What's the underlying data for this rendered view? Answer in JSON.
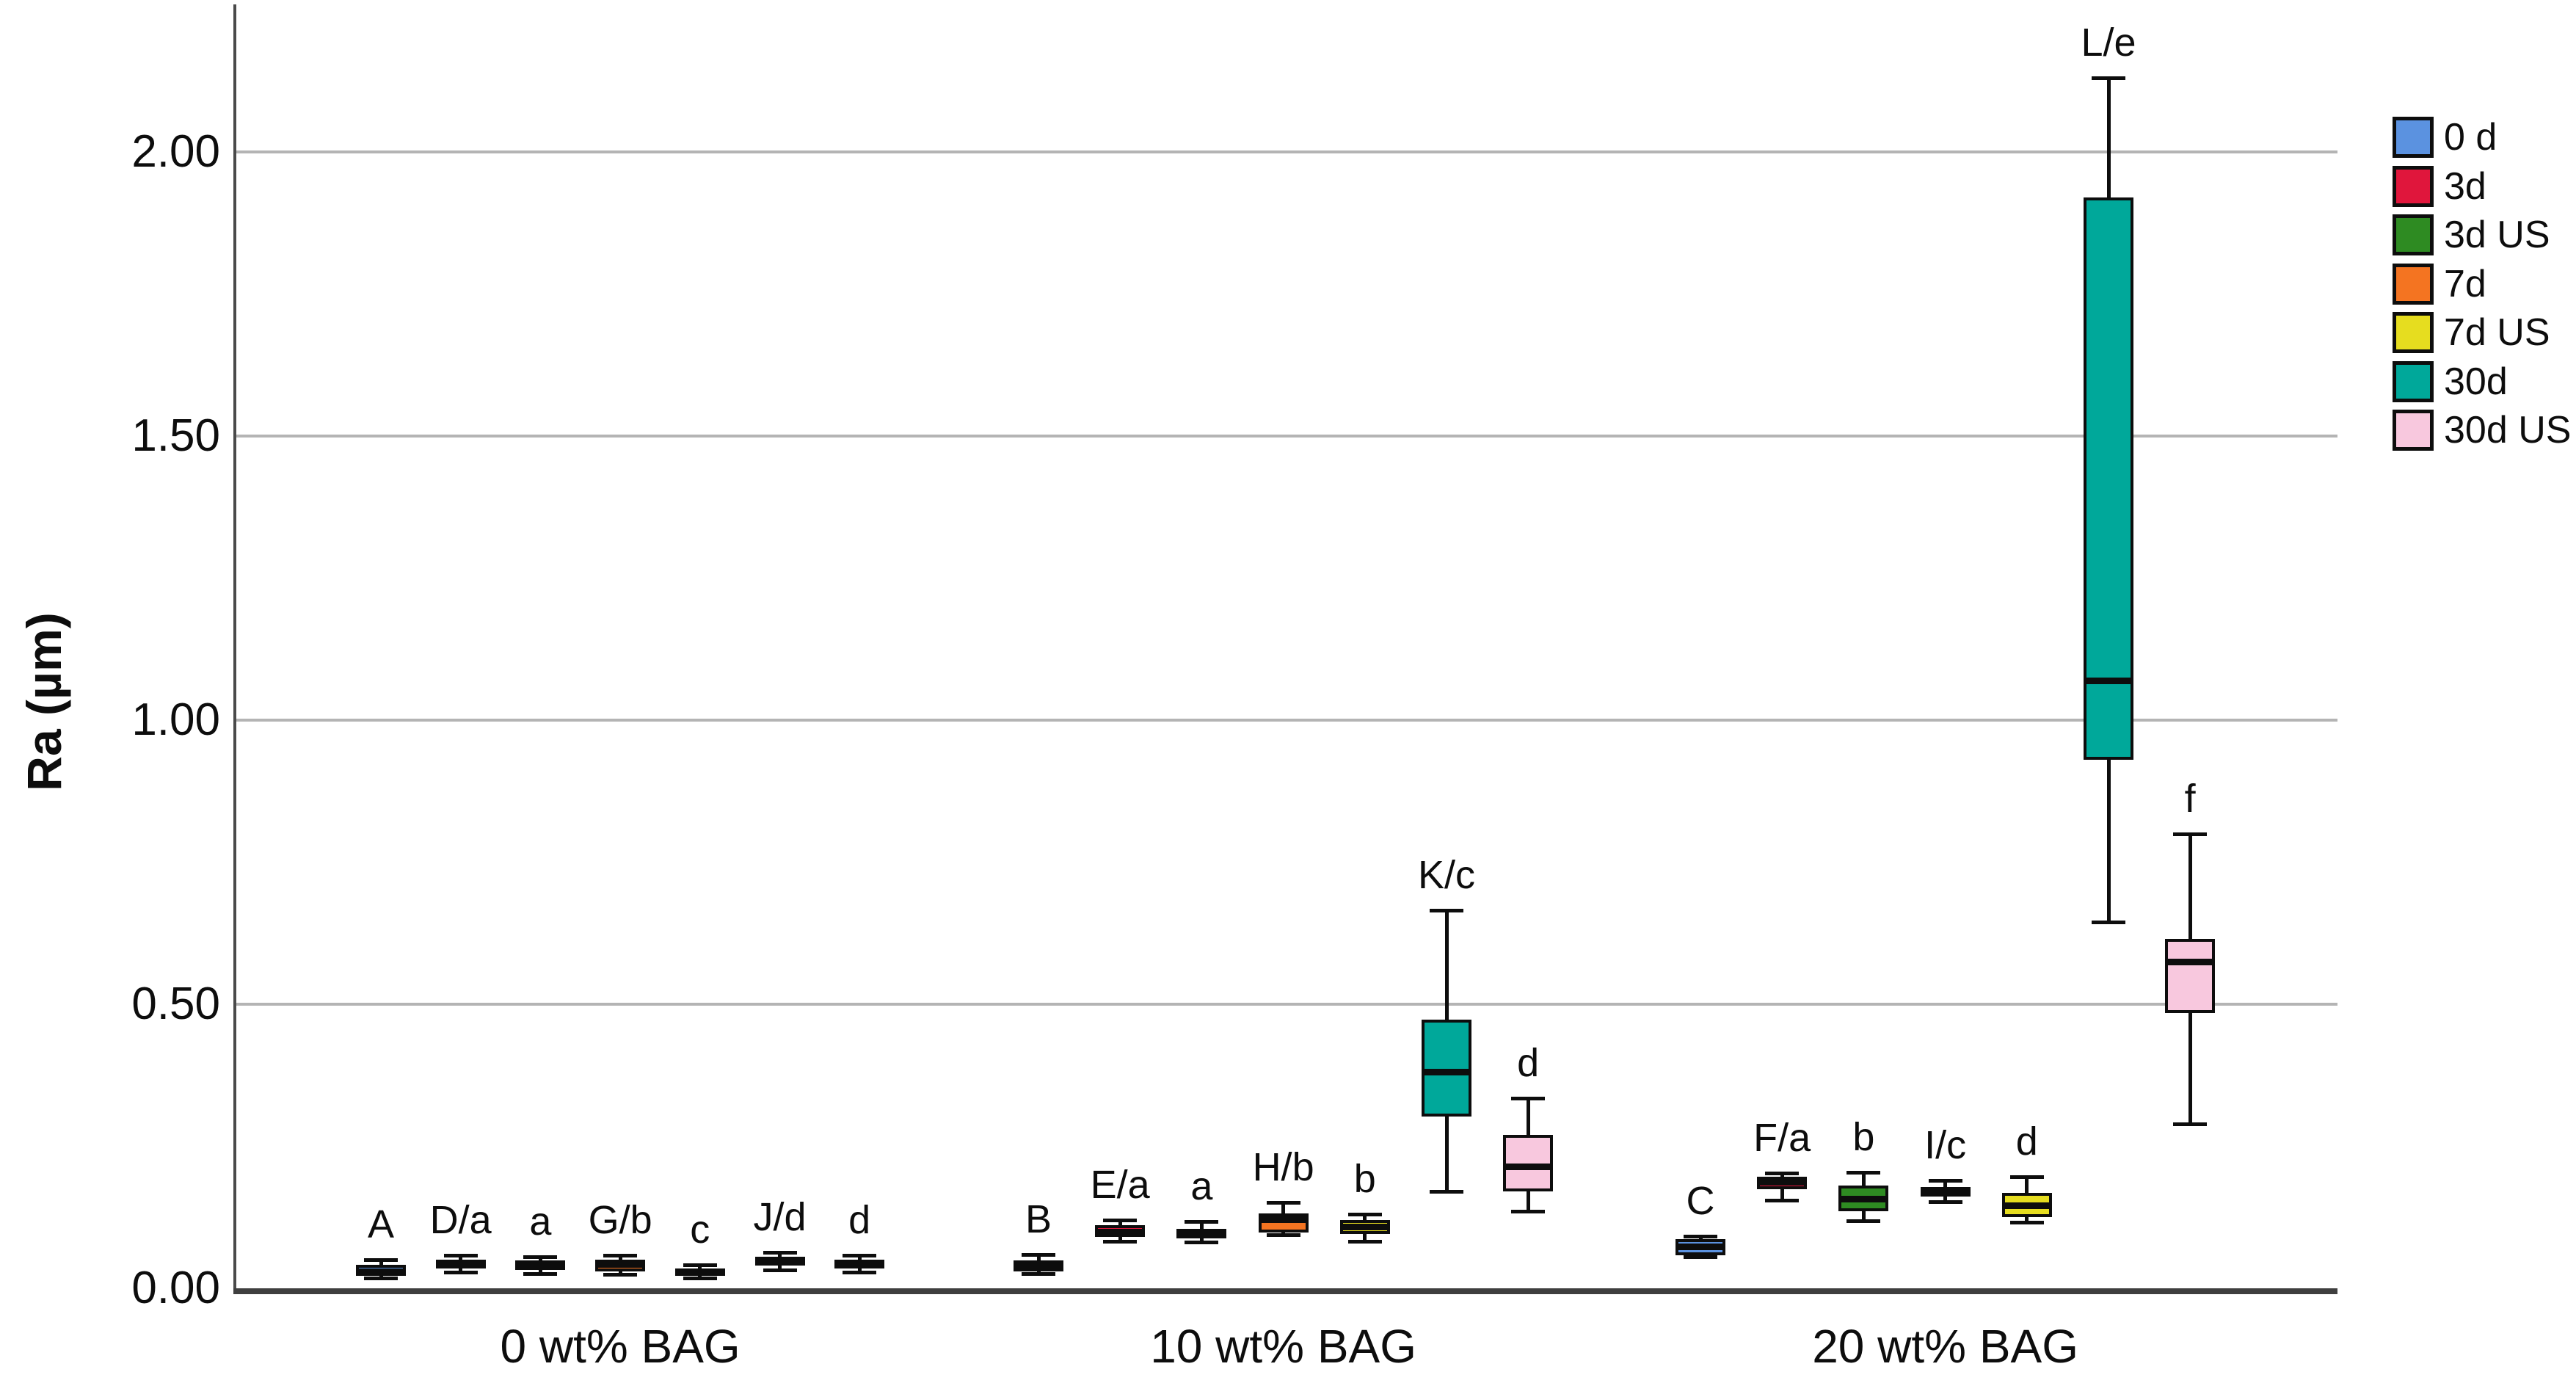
{
  "figure": {
    "kind": "clustered-boxplot-figure",
    "background": "#ffffff",
    "grid_color": "#b4b4b4",
    "axis_color": "#3f3f3f"
  },
  "chart_data": {
    "type": "boxplot",
    "title": "",
    "xlabel": "",
    "ylabel": "Ra (µm)",
    "ylim": [
      0,
      2.2
    ],
    "grid": "horizontal",
    "legend_position": "right",
    "yticks": [
      {
        "label": "0.00",
        "value": 0.0
      },
      {
        "label": "0.50",
        "value": 0.5
      },
      {
        "label": "1.00",
        "value": 1.0
      },
      {
        "label": "1.50",
        "value": 1.5
      },
      {
        "label": "2.00",
        "value": 2.0
      }
    ],
    "series": [
      {
        "name": "0 d",
        "color": "#5B92E0"
      },
      {
        "name": "3d",
        "color": "#E0163C"
      },
      {
        "name": "3d US",
        "color": "#2E8B22"
      },
      {
        "name": "7d",
        "color": "#F47421"
      },
      {
        "name": "7d US",
        "color": "#E6DD1F"
      },
      {
        "name": "30d",
        "color": "#00A89A"
      },
      {
        "name": "30d US",
        "color": "#F8C8DE"
      }
    ],
    "groups": [
      {
        "label": "0 wt% BAG",
        "boxes": [
          {
            "series": "0 d",
            "annotation": "A",
            "whisker_low": 0.018,
            "q1": 0.022,
            "median": 0.03,
            "q3": 0.041,
            "whisker_high": 0.05
          },
          {
            "series": "3d",
            "annotation": "D/a",
            "whisker_low": 0.028,
            "q1": 0.035,
            "median": 0.043,
            "q3": 0.051,
            "whisker_high": 0.058
          },
          {
            "series": "3d US",
            "annotation": "a",
            "whisker_low": 0.026,
            "q1": 0.032,
            "median": 0.04,
            "q3": 0.049,
            "whisker_high": 0.056
          },
          {
            "series": "7d",
            "annotation": "G/b",
            "whisker_low": 0.025,
            "q1": 0.03,
            "median": 0.043,
            "q3": 0.051,
            "whisker_high": 0.058
          },
          {
            "series": "7d US",
            "annotation": "c",
            "whisker_low": 0.018,
            "q1": 0.024,
            "median": 0.029,
            "q3": 0.035,
            "whisker_high": 0.041
          },
          {
            "series": "30d",
            "annotation": "J/d",
            "whisker_low": 0.032,
            "q1": 0.04,
            "median": 0.048,
            "q3": 0.056,
            "whisker_high": 0.063
          },
          {
            "series": "30d US",
            "annotation": "d",
            "whisker_low": 0.028,
            "q1": 0.035,
            "median": 0.043,
            "q3": 0.051,
            "whisker_high": 0.058
          }
        ]
      },
      {
        "label": "10 wt% BAG",
        "boxes": [
          {
            "series": "0 d",
            "annotation": "B",
            "whisker_low": 0.026,
            "q1": 0.03,
            "median": 0.039,
            "q3": 0.049,
            "whisker_high": 0.059
          },
          {
            "series": "3d",
            "annotation": "E/a",
            "whisker_low": 0.083,
            "q1": 0.09,
            "median": 0.1,
            "q3": 0.111,
            "whisker_high": 0.12
          },
          {
            "series": "3d US",
            "annotation": "a",
            "whisker_low": 0.082,
            "q1": 0.088,
            "median": 0.098,
            "q3": 0.105,
            "whisker_high": 0.117
          },
          {
            "series": "7d",
            "annotation": "H/b",
            "whisker_low": 0.094,
            "q1": 0.098,
            "median": 0.122,
            "q3": 0.132,
            "whisker_high": 0.151
          },
          {
            "series": "7d US",
            "annotation": "b",
            "whisker_low": 0.083,
            "q1": 0.095,
            "median": 0.108,
            "q3": 0.12,
            "whisker_high": 0.13
          },
          {
            "series": "30d",
            "annotation": "K/c",
            "whisker_low": 0.17,
            "q1": 0.302,
            "median": 0.381,
            "q3": 0.473,
            "whisker_high": 0.665
          },
          {
            "series": "30d US",
            "annotation": "d",
            "whisker_low": 0.136,
            "q1": 0.17,
            "median": 0.214,
            "q3": 0.27,
            "whisker_high": 0.335
          }
        ]
      },
      {
        "label": "20 wt% BAG",
        "boxes": [
          {
            "series": "0 d",
            "annotation": "C",
            "whisker_low": 0.055,
            "q1": 0.058,
            "median": 0.074,
            "q3": 0.087,
            "whisker_high": 0.092
          },
          {
            "series": "3d",
            "annotation": "F/a",
            "whisker_low": 0.155,
            "q1": 0.174,
            "median": 0.187,
            "q3": 0.196,
            "whisker_high": 0.203
          },
          {
            "series": "3d US",
            "annotation": "b",
            "whisker_low": 0.119,
            "q1": 0.136,
            "median": 0.158,
            "q3": 0.181,
            "whisker_high": 0.204
          },
          {
            "series": "7d",
            "annotation": "I/c",
            "whisker_low": 0.153,
            "q1": 0.162,
            "median": 0.17,
            "q3": 0.178,
            "whisker_high": 0.19
          },
          {
            "series": "7d US",
            "annotation": "d",
            "whisker_low": 0.116,
            "q1": 0.125,
            "median": 0.146,
            "q3": 0.168,
            "whisker_high": 0.196
          },
          {
            "series": "30d",
            "annotation": "L/e",
            "whisker_low": 0.645,
            "q1": 0.93,
            "median": 1.07,
            "q3": 1.92,
            "whisker_high": 2.13
          },
          {
            "series": "30d US",
            "annotation": "f",
            "whisker_low": 0.29,
            "q1": 0.485,
            "median": 0.575,
            "q3": 0.615,
            "whisker_high": 0.8
          }
        ]
      }
    ]
  }
}
